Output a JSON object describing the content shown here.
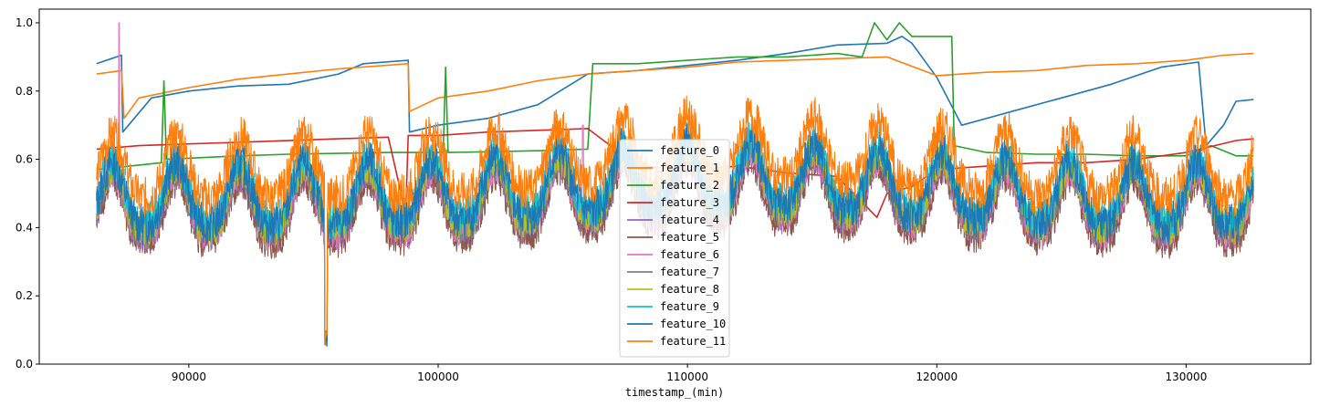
{
  "chart_data": {
    "type": "line",
    "title": "",
    "xlabel": "timestamp_(min)",
    "ylabel": "",
    "xlim": [
      84000,
      135000
    ],
    "ylim": [
      0.0,
      1.04
    ],
    "x_ticks": [
      90000,
      100000,
      110000,
      120000,
      130000
    ],
    "x_tick_labels": [
      "90000",
      "100000",
      "110000",
      "120000",
      "130000"
    ],
    "y_ticks": [
      0.0,
      0.2,
      0.4,
      0.6,
      0.8,
      1.0
    ],
    "y_tick_labels": [
      "0.0",
      "0.2",
      "0.4",
      "0.6",
      "0.8",
      "1.0"
    ],
    "grid": false,
    "legend_position": "center-bottom",
    "series": [
      {
        "name": "feature_0",
        "color": "#1f77b4",
        "kind": "baseline",
        "points": [
          [
            86300,
            0.88
          ],
          [
            87300,
            0.905
          ],
          [
            87350,
            0.68
          ],
          [
            88500,
            0.78
          ],
          [
            90000,
            0.8
          ],
          [
            92000,
            0.815
          ],
          [
            94000,
            0.82
          ],
          [
            96000,
            0.85
          ],
          [
            97000,
            0.88
          ],
          [
            98800,
            0.89
          ],
          [
            98850,
            0.68
          ],
          [
            100000,
            0.7
          ],
          [
            102000,
            0.72
          ],
          [
            104000,
            0.76
          ],
          [
            106000,
            0.85
          ],
          [
            108000,
            0.86
          ],
          [
            110000,
            0.875
          ],
          [
            112000,
            0.89
          ],
          [
            114000,
            0.91
          ],
          [
            116000,
            0.935
          ],
          [
            118000,
            0.94
          ],
          [
            118600,
            0.96
          ],
          [
            119000,
            0.94
          ],
          [
            120000,
            0.84
          ],
          [
            121000,
            0.7
          ],
          [
            123000,
            0.74
          ],
          [
            125000,
            0.78
          ],
          [
            127000,
            0.82
          ],
          [
            129000,
            0.87
          ],
          [
            130500,
            0.885
          ],
          [
            130800,
            0.64
          ],
          [
            131500,
            0.7
          ],
          [
            132000,
            0.77
          ],
          [
            132700,
            0.775
          ]
        ]
      },
      {
        "name": "feature_1",
        "color": "#ff7f0e",
        "kind": "baseline",
        "points": [
          [
            86300,
            0.85
          ],
          [
            87300,
            0.86
          ],
          [
            87400,
            0.72
          ],
          [
            88000,
            0.78
          ],
          [
            90000,
            0.81
          ],
          [
            92000,
            0.835
          ],
          [
            94000,
            0.85
          ],
          [
            96000,
            0.865
          ],
          [
            98800,
            0.88
          ],
          [
            98850,
            0.74
          ],
          [
            100000,
            0.78
          ],
          [
            102000,
            0.8
          ],
          [
            104000,
            0.83
          ],
          [
            106000,
            0.85
          ],
          [
            107000,
            0.855
          ],
          [
            108000,
            0.86
          ],
          [
            110000,
            0.87
          ],
          [
            112000,
            0.885
          ],
          [
            114000,
            0.89
          ],
          [
            116000,
            0.895
          ],
          [
            118000,
            0.9
          ],
          [
            120000,
            0.845
          ],
          [
            122000,
            0.855
          ],
          [
            124000,
            0.86
          ],
          [
            126000,
            0.875
          ],
          [
            128000,
            0.88
          ],
          [
            130000,
            0.89
          ],
          [
            131500,
            0.905
          ],
          [
            132700,
            0.91
          ]
        ]
      },
      {
        "name": "feature_2",
        "color": "#2ca02c",
        "kind": "baseline",
        "points": [
          [
            86300,
            0.57
          ],
          [
            88900,
            0.59
          ],
          [
            89000,
            0.83
          ],
          [
            89100,
            0.6
          ],
          [
            92000,
            0.61
          ],
          [
            94000,
            0.615
          ],
          [
            98000,
            0.62
          ],
          [
            100200,
            0.62
          ],
          [
            100300,
            0.87
          ],
          [
            100400,
            0.62
          ],
          [
            104000,
            0.625
          ],
          [
            106000,
            0.63
          ],
          [
            106200,
            0.88
          ],
          [
            108000,
            0.88
          ],
          [
            110000,
            0.89
          ],
          [
            112000,
            0.9
          ],
          [
            114000,
            0.9
          ],
          [
            116000,
            0.91
          ],
          [
            117000,
            0.9
          ],
          [
            117500,
            1.0
          ],
          [
            118000,
            0.95
          ],
          [
            118500,
            1.0
          ],
          [
            119000,
            0.96
          ],
          [
            120600,
            0.96
          ],
          [
            120700,
            0.64
          ],
          [
            122000,
            0.62
          ],
          [
            124000,
            0.615
          ],
          [
            126000,
            0.615
          ],
          [
            128000,
            0.61
          ],
          [
            130000,
            0.61
          ],
          [
            131000,
            0.64
          ],
          [
            132000,
            0.61
          ],
          [
            132700,
            0.61
          ]
        ]
      },
      {
        "name": "feature_3",
        "color": "#d62728",
        "kind": "baseline",
        "points": [
          [
            86300,
            0.63
          ],
          [
            88000,
            0.64
          ],
          [
            90000,
            0.645
          ],
          [
            92000,
            0.65
          ],
          [
            96000,
            0.66
          ],
          [
            98000,
            0.665
          ],
          [
            98700,
            0.44
          ],
          [
            98800,
            0.67
          ],
          [
            100000,
            0.67
          ],
          [
            102000,
            0.68
          ],
          [
            104000,
            0.685
          ],
          [
            106000,
            0.69
          ],
          [
            108000,
            0.58
          ],
          [
            110000,
            0.57
          ],
          [
            112000,
            0.58
          ],
          [
            114000,
            0.56
          ],
          [
            116000,
            0.55
          ],
          [
            117600,
            0.43
          ],
          [
            118000,
            0.5
          ],
          [
            119000,
            0.52
          ],
          [
            120000,
            0.57
          ],
          [
            122000,
            0.58
          ],
          [
            124000,
            0.59
          ],
          [
            126000,
            0.59
          ],
          [
            128000,
            0.6
          ],
          [
            130000,
            0.62
          ],
          [
            132000,
            0.655
          ],
          [
            132700,
            0.66
          ]
        ]
      },
      {
        "name": "feature_4",
        "color": "#9467bd",
        "kind": "osc",
        "offset": -0.045,
        "amp": 0.85
      },
      {
        "name": "feature_5",
        "color": "#8c564b",
        "kind": "osc",
        "offset": -0.06,
        "amp": 0.88
      },
      {
        "name": "feature_6",
        "color": "#e377c2",
        "kind": "osc",
        "offset": -0.035,
        "amp": 0.85,
        "spike": [
          [
            87200,
            1.0
          ],
          [
            105800,
            0.7
          ],
          [
            117700,
            0.7
          ]
        ]
      },
      {
        "name": "feature_7",
        "color": "#7f7f7f",
        "kind": "osc",
        "offset": -0.03,
        "amp": 0.9
      },
      {
        "name": "feature_8",
        "color": "#bcbd22",
        "kind": "osc",
        "offset": -0.02,
        "amp": 0.9
      },
      {
        "name": "feature_9",
        "color": "#17becf",
        "kind": "osc",
        "offset": 0.0,
        "amp": 0.95
      },
      {
        "name": "feature_10",
        "color": "#1f77b4",
        "kind": "osc",
        "offset": -0.01,
        "amp": 1.0
      },
      {
        "name": "feature_11",
        "color": "#ff7f0e",
        "kind": "osc",
        "offset": 0.07,
        "amp": 1.0
      }
    ]
  }
}
